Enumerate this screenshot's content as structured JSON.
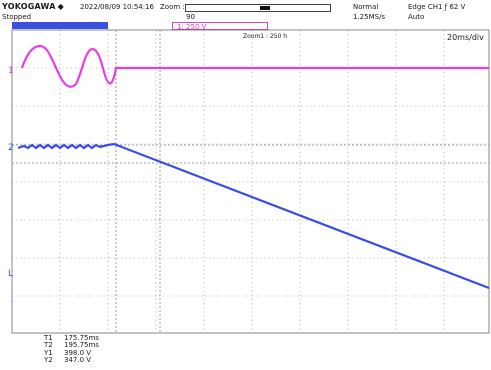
{
  "header": {
    "brand": "YOKOGAWA",
    "status": "Stopped",
    "timestamp": "2022/08/09 10:54:16",
    "zoom_label": "Zoom :",
    "zoom_value": "90",
    "acq_mode": "Normal",
    "sample_rate": "1.25MS/s",
    "trigger": "Edge CH1 ƒ 62 V",
    "trigger_mode": "Auto",
    "ch1_scale": "1: 250 V",
    "zoom_title": "Zoom1 : 250 h",
    "time_div": "20ms/div"
  },
  "markers": {
    "ch1_marker": "1",
    "ch2_marker": "2",
    "trigger_marker": "L"
  },
  "cursors": [
    {
      "key": "T1",
      "value": "175.75ms"
    },
    {
      "key": "T2",
      "value": "195.75ms"
    },
    {
      "key": "Y1",
      "value": "398.0 V"
    },
    {
      "key": "Y2",
      "value": "347.0 V"
    }
  ],
  "colors": {
    "ch1": "#e83de0",
    "ch2": "#3b4be6",
    "grid": "#8a8a8a",
    "cursor": "#b0b0b0"
  }
}
